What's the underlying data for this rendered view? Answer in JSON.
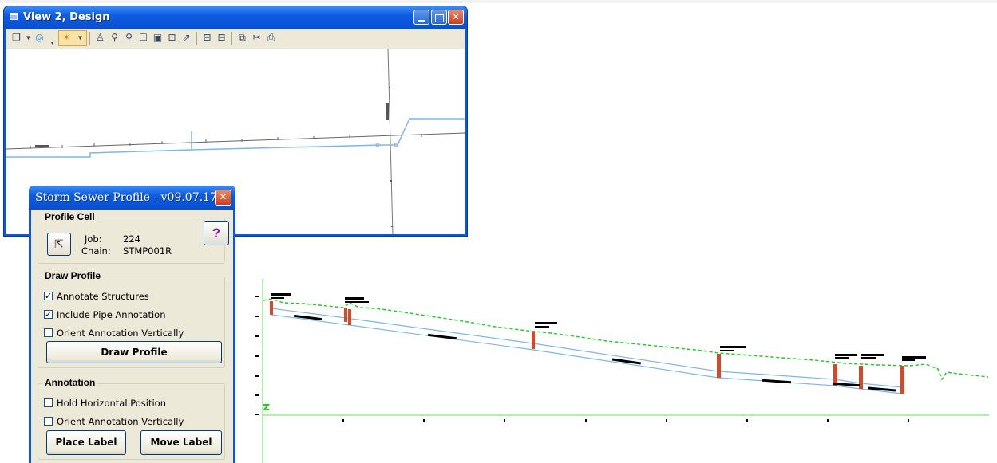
{
  "view_window": {
    "title": "View 2, Design",
    "toolbar_icons": [
      "copy-view-icon",
      "view-attributes-icon",
      "levels-icon",
      "update-view-icon",
      "zoom-in-icon",
      "zoom-out-icon",
      "window-area-icon",
      "fit-view-icon",
      "rotate-view-icon",
      "pan-view-icon",
      "view-previous-icon",
      "view-next-icon",
      "copy-icon",
      "clip-icon",
      "camera-icon"
    ]
  },
  "dialog": {
    "title": "Storm Sewer Profile - v09.07.17",
    "profile_cell": {
      "label": "Profile Cell",
      "job_label": "Job:",
      "job_value": "224",
      "chain_label": "Chain:",
      "chain_value": "STMP001R",
      "help_label": "?"
    },
    "draw_profile": {
      "label": "Draw Profile",
      "annotate_structures": "Annotate Structures",
      "include_pipe_annotation": "Include Pipe Annotation",
      "orient_vertically": "Orient Annotation Vertically",
      "button": "Draw Profile",
      "annotate_structures_checked": true,
      "include_pipe_annotation_checked": true,
      "orient_vertically_checked": false
    },
    "annotation": {
      "label": "Annotation",
      "hold_horizontal": "Hold Horizontal Position",
      "orient_vertically": "Orient Annotation Vertically",
      "place_label": "Place Label",
      "move_label": "Move Label",
      "hold_horizontal_checked": false,
      "orient_vertically_checked": false
    }
  },
  "colors": {
    "title_blue": "#0d5ce2",
    "profile_pipe": "#7fb6e6",
    "ground_line": "#22cc22",
    "structure": "#d24a2a",
    "grid_axis": "#66dd66"
  }
}
